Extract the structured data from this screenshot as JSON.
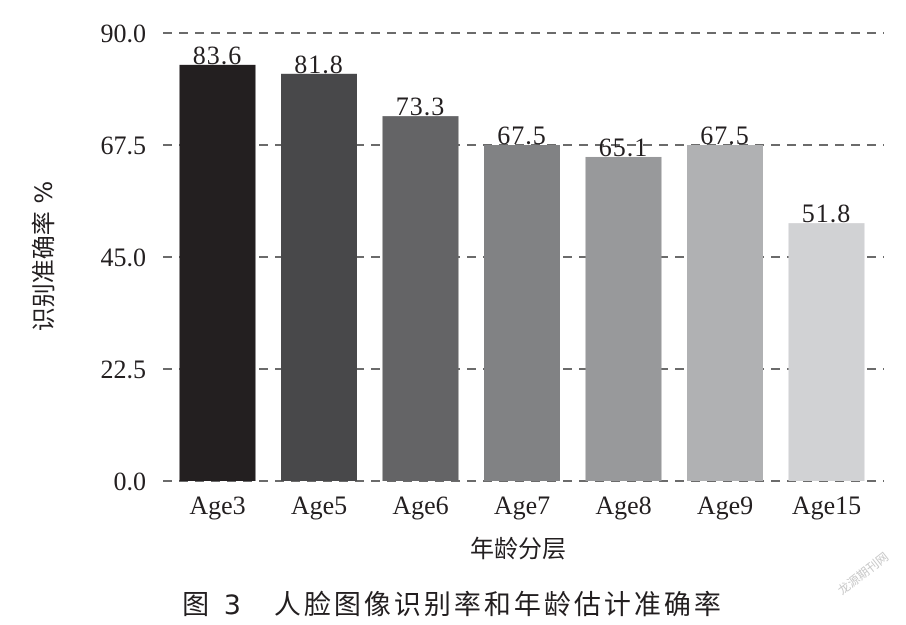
{
  "chart_data": {
    "type": "bar",
    "categories": [
      "Age3",
      "Age5",
      "Age6",
      "Age7",
      "Age8",
      "Age9",
      "Age15"
    ],
    "values": [
      83.6,
      81.8,
      73.3,
      67.5,
      65.1,
      67.5,
      51.8
    ],
    "value_labels": [
      "83.6",
      "81.8",
      "73.3",
      "67.5",
      "65.1",
      "67.5",
      "51.8"
    ],
    "bar_colors": [
      "#231f20",
      "#48484a",
      "#646466",
      "#818284",
      "#98999b",
      "#b0b1b3",
      "#d1d2d4"
    ],
    "xlabel": "年龄分层",
    "ylabel": "识别准确率 %",
    "ylim": [
      0,
      90
    ],
    "yticks": [
      0,
      22.5,
      45,
      67.5,
      90
    ],
    "ytick_labels": [
      "0.0",
      "22.5",
      "45.0",
      "67.5",
      "90.0"
    ],
    "grid": "horizontal-dashed"
  },
  "caption": "图 3　人脸图像识别率和年龄估计准确率",
  "watermark": "龙源期刊网"
}
